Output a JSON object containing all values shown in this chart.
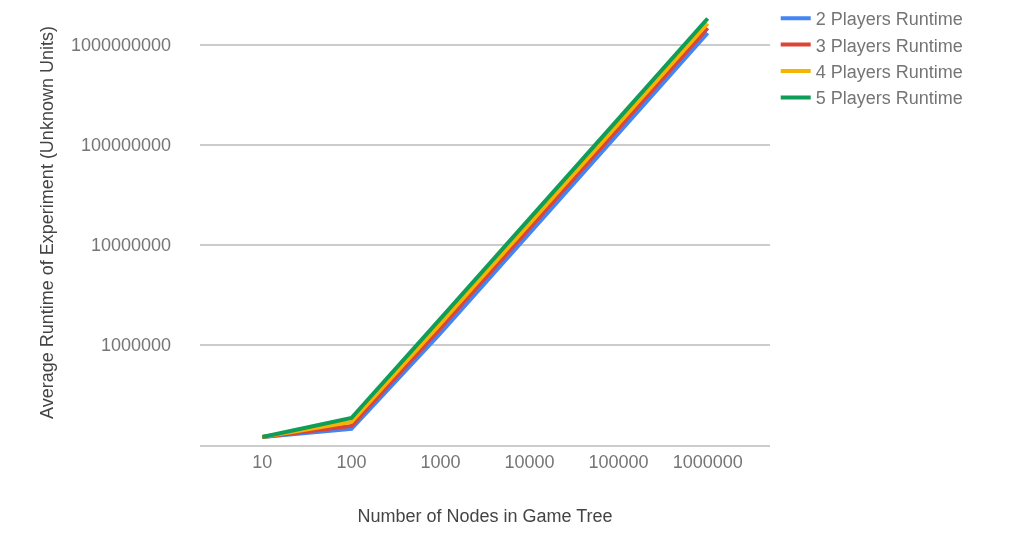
{
  "chart_data": {
    "type": "line",
    "xlabel": "Number of Nodes in Game Tree",
    "ylabel": "Average Runtime of Experiment (Unknown Units)",
    "categories": [
      "10",
      "100",
      "1000",
      "10000",
      "100000",
      "1000000"
    ],
    "log": "y",
    "ylim": [
      100000,
      2800000000
    ],
    "yticks": [
      1000000,
      10000000,
      100000000,
      1000000000
    ],
    "grid": "y",
    "legend": "top right",
    "marker": "none",
    "line_style": "solid",
    "series": [
      {
        "name": "2 Players Runtime",
        "color": "#4285f4",
        "values": [
          120000,
          145000,
          1310000,
          13100000,
          131000000,
          1310000000
        ]
      },
      {
        "name": "3 Players Runtime",
        "color": "#db4437",
        "values": [
          120000,
          155000,
          1470000,
          14700000,
          147000000,
          1470000000
        ]
      },
      {
        "name": "4 Players Runtime",
        "color": "#f4b400",
        "values": [
          120000,
          170000,
          1630000,
          16300000,
          163000000,
          1630000000
        ]
      },
      {
        "name": "5 Players Runtime",
        "color": "#0f9d58",
        "values": [
          120000,
          186000,
          1830000,
          18300000,
          183000000,
          1830000000
        ]
      }
    ]
  }
}
